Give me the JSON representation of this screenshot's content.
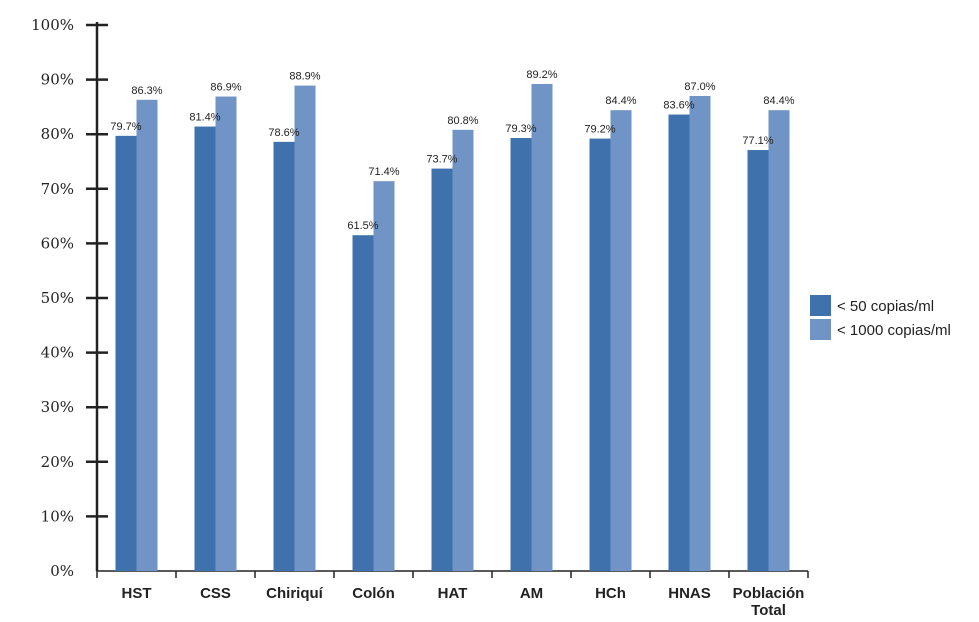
{
  "chart_data": {
    "type": "bar",
    "categories": [
      "HST",
      "CSS",
      "Chiriquí",
      "Colón",
      "HAT",
      "AM",
      "HCh",
      "HNAS",
      "Población Total"
    ],
    "series": [
      {
        "name": "< 50 copias/ml",
        "color": "#3f72ad",
        "values": [
          79.7,
          81.4,
          78.6,
          61.5,
          73.7,
          79.3,
          79.2,
          83.6,
          77.1
        ],
        "labels": [
          "79.7%",
          "81.4%",
          "78.6%",
          "61.5%",
          "73.7%",
          "79.3%",
          "79.2%",
          "83.6%",
          "77.1%"
        ]
      },
      {
        "name": "< 1000 copias/ml",
        "color": "#7094c5",
        "values": [
          86.3,
          86.9,
          88.9,
          71.4,
          80.8,
          89.2,
          84.4,
          87.0,
          84.4
        ],
        "labels": [
          "86.3%",
          "86.9%",
          "88.9%",
          "71.4%",
          "80.8%",
          "89.2%",
          "84.4%",
          "87.0%",
          "84.4%"
        ]
      }
    ],
    "yticks": [
      "0%",
      "10%",
      "20%",
      "30%",
      "40%",
      "50%",
      "60%",
      "70%",
      "80%",
      "90%",
      "100%"
    ],
    "ylim": [
      0,
      100
    ],
    "grid": false,
    "legend_position": "right"
  }
}
